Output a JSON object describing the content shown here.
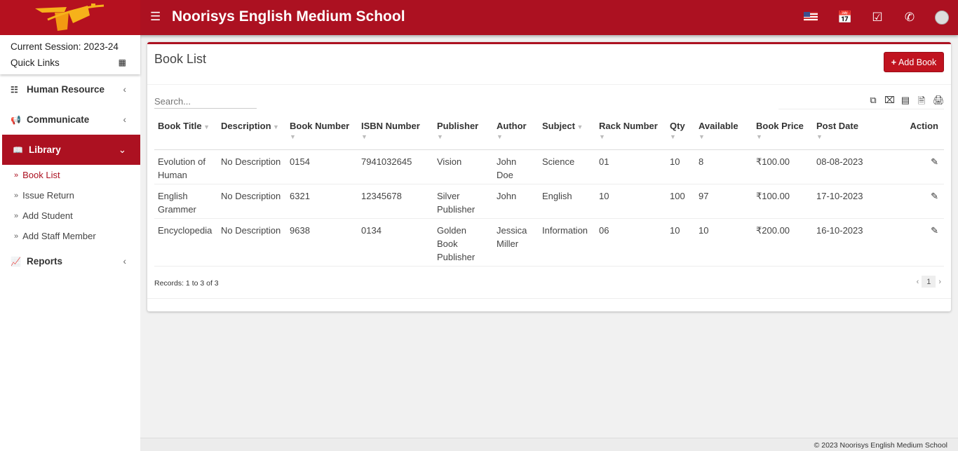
{
  "header": {
    "title": "Noorisys English Medium School",
    "logo_text": "Noorisys English Medium School",
    "icons": [
      "menu-icon",
      "us-flag-icon",
      "calendar-icon",
      "checkbox-icon",
      "whatsapp-icon",
      "user-avatar"
    ]
  },
  "sidebar": {
    "session": "Current Session: 2023-24",
    "quick_links": "Quick Links",
    "items": [
      {
        "label": "Human Resource",
        "icon": "sitemap-icon"
      },
      {
        "label": "Communicate",
        "icon": "bullhorn-icon"
      },
      {
        "label": "Library",
        "icon": "book-icon"
      },
      {
        "label": "Reports",
        "icon": "line-chart-icon"
      }
    ],
    "library_sub": [
      {
        "label": "Book List",
        "active": true
      },
      {
        "label": "Issue Return"
      },
      {
        "label": "Add Student"
      },
      {
        "label": "Add Staff Member"
      }
    ]
  },
  "main": {
    "title": "Book List",
    "add_label": "Add Book",
    "search_placeholder": "Search...",
    "tools": [
      "copy-icon",
      "excel-icon",
      "csv-icon",
      "pdf-icon",
      "print-icon"
    ],
    "columns": [
      "Book Title",
      "Description",
      "Book Number",
      "ISBN Number",
      "Publisher",
      "Author",
      "Subject",
      "Rack Number",
      "Qty",
      "Available",
      "Book Price",
      "Post Date",
      "Action"
    ],
    "rows": [
      [
        "Evolution of Human",
        "No Description",
        "0154",
        "7941032645",
        "Vision",
        "John Doe",
        "Science",
        "01",
        "10",
        "8",
        "₹100.00",
        "08-08-2023"
      ],
      [
        "English Grammer",
        "No Description",
        "6321",
        "12345678",
        "Silver Publisher",
        "John",
        "English",
        "10",
        "100",
        "97",
        "₹100.00",
        "17-10-2023"
      ],
      [
        "Encyclopedia",
        "No Description",
        "9638",
        "0134",
        "Golden Book Publisher",
        "Jessica Miller",
        "Information",
        "06",
        "10",
        "10",
        "₹200.00",
        "16-10-2023"
      ]
    ],
    "records": "Records: 1 to 3 of 3",
    "page": "1"
  },
  "footer": "© 2023 Noorisys English Medium School",
  "colors": {
    "brand": "#ac1121"
  }
}
